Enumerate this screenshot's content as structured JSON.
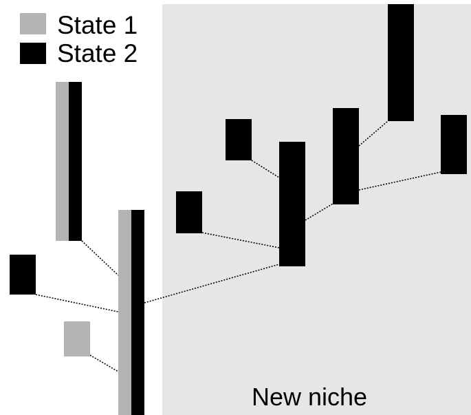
{
  "legend": {
    "items": [
      {
        "label": "State 1",
        "color": "#b3b3b3"
      },
      {
        "label": "State 2",
        "color": "#000000"
      }
    ]
  },
  "niche_region": {
    "label": "New niche",
    "color": "#e6e6e6"
  },
  "edge_style": "dotted"
}
